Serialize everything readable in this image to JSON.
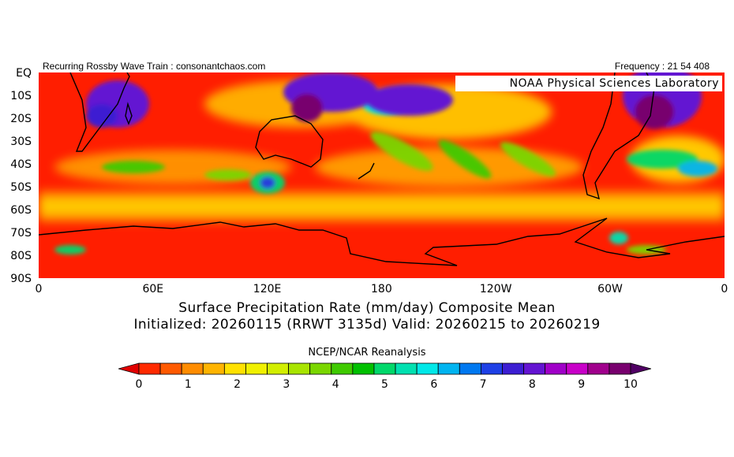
{
  "header": {
    "left": "Recurring Rossby Wave Train : consonantchaos.com",
    "right": "Frequency : 21 54 408"
  },
  "map": {
    "lab_label": "NOAA  Physical  Sciences  Laboratory",
    "y_labels": [
      "EQ",
      "10S",
      "20S",
      "30S",
      "40S",
      "50S",
      "60S",
      "70S",
      "80S",
      "90S"
    ],
    "x_labels": [
      "0",
      "60E",
      "120E",
      "180",
      "120W",
      "60W",
      "0"
    ]
  },
  "title": {
    "line1": "Surface Precipitation Rate (mm/day) Composite Mean",
    "line2": "Initialized: 20260115 (RRWT 3135d) Valid: 20260215 to 20260219"
  },
  "source": "NCEP/NCAR Reanalysis",
  "colorbar": {
    "labels": [
      "0",
      "1",
      "2",
      "3",
      "4",
      "5",
      "6",
      "7",
      "8",
      "9",
      "10"
    ],
    "colors": [
      "#e10000",
      "#ff2a00",
      "#ff5a00",
      "#ff8c00",
      "#ffb400",
      "#ffe100",
      "#f0f000",
      "#d2ee00",
      "#a8e400",
      "#7ad600",
      "#3fca00",
      "#00c000",
      "#00d86a",
      "#00e0b0",
      "#00e8e8",
      "#00b4f0",
      "#0078f0",
      "#1e40e6",
      "#3c1ed2",
      "#6414d2",
      "#a000c8",
      "#c800c8",
      "#a0008c",
      "#78006e",
      "#500064"
    ]
  }
}
